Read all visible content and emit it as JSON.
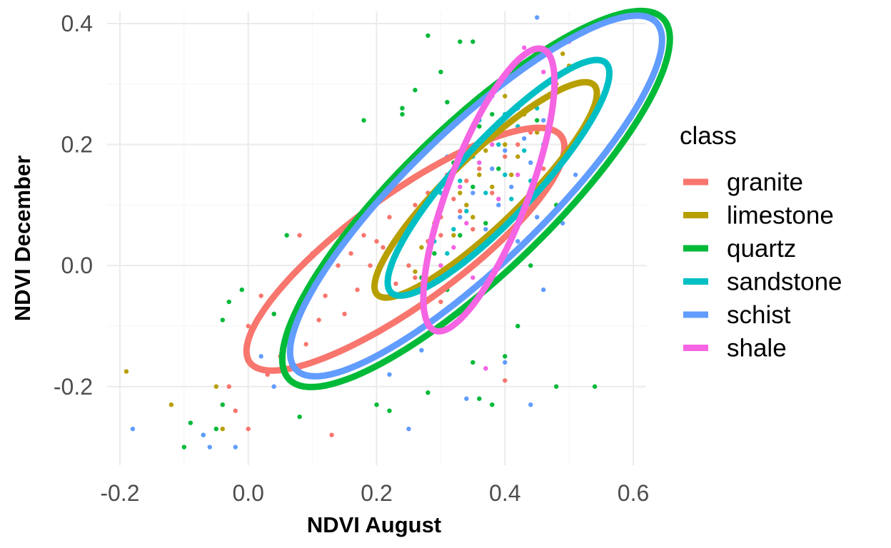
{
  "chart_data": {
    "type": "scatter",
    "title": "",
    "xlabel": "NDVI August",
    "ylabel": "NDVI December",
    "xlim": [
      -0.22,
      0.62
    ],
    "ylim": [
      -0.33,
      0.42
    ],
    "x_ticks": [
      "-0.2",
      "0.0",
      "0.2",
      "0.4",
      "0.6"
    ],
    "y_ticks": [
      "-0.2",
      "0.0",
      "0.2",
      "0.4"
    ],
    "grid": true,
    "legend": {
      "title": "class",
      "position": "right"
    },
    "series": [
      {
        "name": "granite",
        "color": "#F8766D",
        "ellipse": {
          "center": [
            0.245,
            0.027
          ],
          "semi_major": 0.3,
          "semi_minor": 0.085,
          "angle_deg": 36
        },
        "points": [
          [
            0.0,
            -0.1
          ],
          [
            0.02,
            -0.05
          ],
          [
            0.04,
            -0.08
          ],
          [
            0.06,
            -0.12
          ],
          [
            0.08,
            -0.06
          ],
          [
            0.1,
            -0.03
          ],
          [
            0.05,
            -0.15
          ],
          [
            0.07,
            -0.1
          ],
          [
            0.12,
            -0.05
          ],
          [
            0.14,
            0.0
          ],
          [
            0.16,
            0.02
          ],
          [
            0.18,
            0.05
          ],
          [
            0.2,
            0.04
          ],
          [
            0.22,
            0.08
          ],
          [
            0.15,
            -0.08
          ],
          [
            0.17,
            -0.04
          ],
          [
            0.19,
            0.0
          ],
          [
            0.21,
            0.03
          ],
          [
            0.24,
            0.06
          ],
          [
            0.26,
            0.1
          ],
          [
            0.28,
            0.12
          ],
          [
            0.3,
            0.08
          ],
          [
            0.32,
            0.11
          ],
          [
            0.34,
            0.14
          ],
          [
            0.36,
            0.16
          ],
          [
            0.3,
            0.05
          ],
          [
            0.33,
            0.09
          ],
          [
            0.38,
            0.12
          ],
          [
            0.4,
            0.18
          ],
          [
            0.42,
            0.2
          ],
          [
            0.35,
            0.06
          ],
          [
            0.28,
            0.04
          ],
          [
            0.25,
            0.0
          ],
          [
            0.23,
            -0.03
          ],
          [
            0.11,
            -0.09
          ],
          [
            0.09,
            -0.13
          ],
          [
            0.03,
            -0.18
          ],
          [
            -0.02,
            -0.24
          ],
          [
            0.0,
            -0.27
          ],
          [
            -0.03,
            -0.2
          ],
          [
            0.13,
            -0.28
          ],
          [
            0.3,
            -0.06
          ],
          [
            0.36,
            0.03
          ],
          [
            0.44,
            0.22
          ],
          [
            0.46,
            0.16
          ],
          [
            0.1,
            0.02
          ],
          [
            0.08,
            0.05
          ],
          [
            0.4,
            -0.19
          ],
          [
            0.26,
            -0.02
          ],
          [
            0.31,
            0.15
          ]
        ]
      },
      {
        "name": "limestone",
        "color": "#B79F00",
        "ellipse": {
          "center": [
            0.37,
            0.125
          ],
          "semi_major": 0.235,
          "semi_minor": 0.055,
          "angle_deg": 44
        },
        "points": [
          [
            -0.19,
            -0.175
          ],
          [
            -0.12,
            -0.23
          ],
          [
            -0.05,
            -0.2
          ],
          [
            -0.04,
            -0.27
          ],
          [
            0.3,
            0.1
          ],
          [
            0.33,
            0.12
          ],
          [
            0.36,
            0.15
          ],
          [
            0.4,
            0.2
          ],
          [
            0.43,
            0.25
          ],
          [
            0.48,
            0.3
          ],
          [
            0.49,
            0.35
          ],
          [
            0.35,
            0.08
          ],
          [
            0.38,
            0.13
          ],
          [
            0.42,
            0.18
          ],
          [
            0.45,
            0.22
          ],
          [
            0.32,
            0.05
          ],
          [
            0.27,
            0.03
          ],
          [
            0.3,
            0.0
          ],
          [
            0.4,
            0.28
          ],
          [
            0.5,
            0.33
          ],
          [
            0.37,
            0.19
          ],
          [
            0.34,
            0.1
          ],
          [
            0.41,
            0.15
          ],
          [
            0.29,
            0.07
          ],
          [
            0.26,
            -0.01
          ]
        ]
      },
      {
        "name": "quartz",
        "color": "#00BA38",
        "ellipse": {
          "center": [
            0.355,
            0.11
          ],
          "semi_major": 0.405,
          "semi_minor": 0.115,
          "angle_deg": 44
        },
        "points": [
          [
            0.28,
            0.38
          ],
          [
            0.33,
            0.37
          ],
          [
            0.35,
            0.37
          ],
          [
            0.18,
            0.24
          ],
          [
            0.26,
            0.29
          ],
          [
            0.24,
            0.26
          ],
          [
            0.24,
            0.25
          ],
          [
            0.3,
            0.32
          ],
          [
            0.31,
            0.27
          ],
          [
            -0.1,
            -0.3
          ],
          [
            -0.09,
            -0.26
          ],
          [
            -0.05,
            -0.27
          ],
          [
            -0.04,
            -0.23
          ],
          [
            0.06,
            0.05
          ],
          [
            0.54,
            -0.2
          ],
          [
            0.48,
            -0.2
          ],
          [
            0.36,
            -0.22
          ],
          [
            0.38,
            -0.23
          ],
          [
            0.28,
            -0.21
          ],
          [
            0.12,
            -0.2
          ],
          [
            0.2,
            -0.23
          ],
          [
            0.22,
            -0.24
          ],
          [
            0.32,
            0.17
          ],
          [
            0.34,
            0.2
          ],
          [
            0.36,
            0.23
          ],
          [
            0.38,
            0.25
          ],
          [
            0.3,
            0.1
          ],
          [
            0.35,
            0.13
          ],
          [
            0.39,
            0.16
          ],
          [
            0.41,
            0.22
          ],
          [
            0.45,
            0.24
          ],
          [
            0.29,
            0.02
          ],
          [
            0.33,
            0.05
          ],
          [
            0.37,
            0.07
          ],
          [
            0.27,
            -0.02
          ],
          [
            0.31,
            -0.04
          ],
          [
            -0.04,
            -0.09
          ],
          [
            -0.03,
            -0.06
          ],
          [
            -0.01,
            -0.04
          ],
          [
            0.04,
            -0.08
          ],
          [
            0.06,
            -0.18
          ],
          [
            0.08,
            -0.25
          ],
          [
            -0.07,
            -0.28
          ],
          [
            0.35,
            -0.16
          ],
          [
            0.4,
            -0.15
          ],
          [
            0.42,
            -0.1
          ],
          [
            0.44,
            0.0
          ],
          [
            0.46,
            0.05
          ],
          [
            0.48,
            0.1
          ],
          [
            0.36,
            0.28
          ]
        ]
      },
      {
        "name": "sandstone",
        "color": "#00BFC4",
        "ellipse": {
          "center": [
            0.39,
            0.145
          ],
          "semi_major": 0.245,
          "semi_minor": 0.06,
          "angle_deg": 47
        },
        "points": [
          [
            0.3,
            0.12
          ],
          [
            0.33,
            0.14
          ],
          [
            0.36,
            0.17
          ],
          [
            0.39,
            0.2
          ],
          [
            0.42,
            0.23
          ],
          [
            0.45,
            0.26
          ],
          [
            0.34,
            0.09
          ],
          [
            0.37,
            0.12
          ],
          [
            0.4,
            0.15
          ],
          [
            0.43,
            0.19
          ],
          [
            0.32,
            0.06
          ],
          [
            0.35,
            0.18
          ],
          [
            0.38,
            0.22
          ],
          [
            0.41,
            0.11
          ],
          [
            0.44,
            0.14
          ],
          [
            0.29,
            0.04
          ],
          [
            0.31,
            0.02
          ],
          [
            0.46,
            0.2
          ],
          [
            0.36,
            0.24
          ],
          [
            0.4,
            0.25
          ]
        ]
      },
      {
        "name": "schist",
        "color": "#619CFF",
        "ellipse": {
          "center": [
            0.355,
            0.115
          ],
          "semi_major": 0.39,
          "semi_minor": 0.105,
          "angle_deg": 44
        },
        "points": [
          [
            0.45,
            0.41
          ],
          [
            -0.18,
            -0.27
          ],
          [
            -0.07,
            -0.28
          ],
          [
            -0.06,
            -0.3
          ],
          [
            0.08,
            -0.2
          ],
          [
            0.12,
            -0.18
          ],
          [
            0.25,
            -0.27
          ],
          [
            0.34,
            -0.22
          ],
          [
            0.44,
            -0.23
          ],
          [
            0.4,
            -0.16
          ],
          [
            0.37,
            -0.17
          ],
          [
            0.46,
            -0.04
          ],
          [
            0.36,
            0.2
          ],
          [
            0.39,
            0.23
          ],
          [
            0.42,
            0.26
          ],
          [
            0.4,
            0.19
          ],
          [
            0.38,
            0.16
          ],
          [
            0.41,
            0.13
          ],
          [
            0.44,
            0.17
          ],
          [
            0.35,
            0.12
          ],
          [
            0.33,
            0.08
          ],
          [
            0.37,
            0.06
          ],
          [
            0.43,
            0.21
          ],
          [
            0.46,
            0.24
          ],
          [
            0.47,
            0.28
          ],
          [
            0.38,
            0.28
          ],
          [
            0.31,
            0.18
          ],
          [
            0.04,
            -0.2
          ],
          [
            0.02,
            -0.15
          ],
          [
            -0.02,
            -0.3
          ],
          [
            0.22,
            -0.18
          ],
          [
            0.27,
            -0.14
          ],
          [
            0.49,
            0.07
          ],
          [
            0.51,
            0.15
          ],
          [
            0.39,
            0.1
          ],
          [
            0.42,
            0.04
          ],
          [
            0.45,
            0.08
          ],
          [
            0.36,
            0.01
          ]
        ]
      },
      {
        "name": "shale",
        "color": "#F564E3",
        "ellipse": {
          "center": [
            0.375,
            0.125
          ],
          "semi_major": 0.235,
          "semi_minor": 0.062,
          "angle_deg": 69
        },
        "points": [
          [
            0.37,
            -0.17
          ],
          [
            0.33,
            0.13
          ],
          [
            0.36,
            0.17
          ],
          [
            0.38,
            0.2
          ],
          [
            0.41,
            0.24
          ],
          [
            0.44,
            0.28
          ],
          [
            0.34,
            0.07
          ],
          [
            0.32,
            0.03
          ],
          [
            0.3,
            0.0
          ],
          [
            0.39,
            0.11
          ],
          [
            0.42,
            0.15
          ],
          [
            0.46,
            0.32
          ],
          [
            0.35,
            -0.02
          ],
          [
            0.43,
            0.36
          ],
          [
            0.5,
            0.37
          ]
        ]
      }
    ]
  }
}
